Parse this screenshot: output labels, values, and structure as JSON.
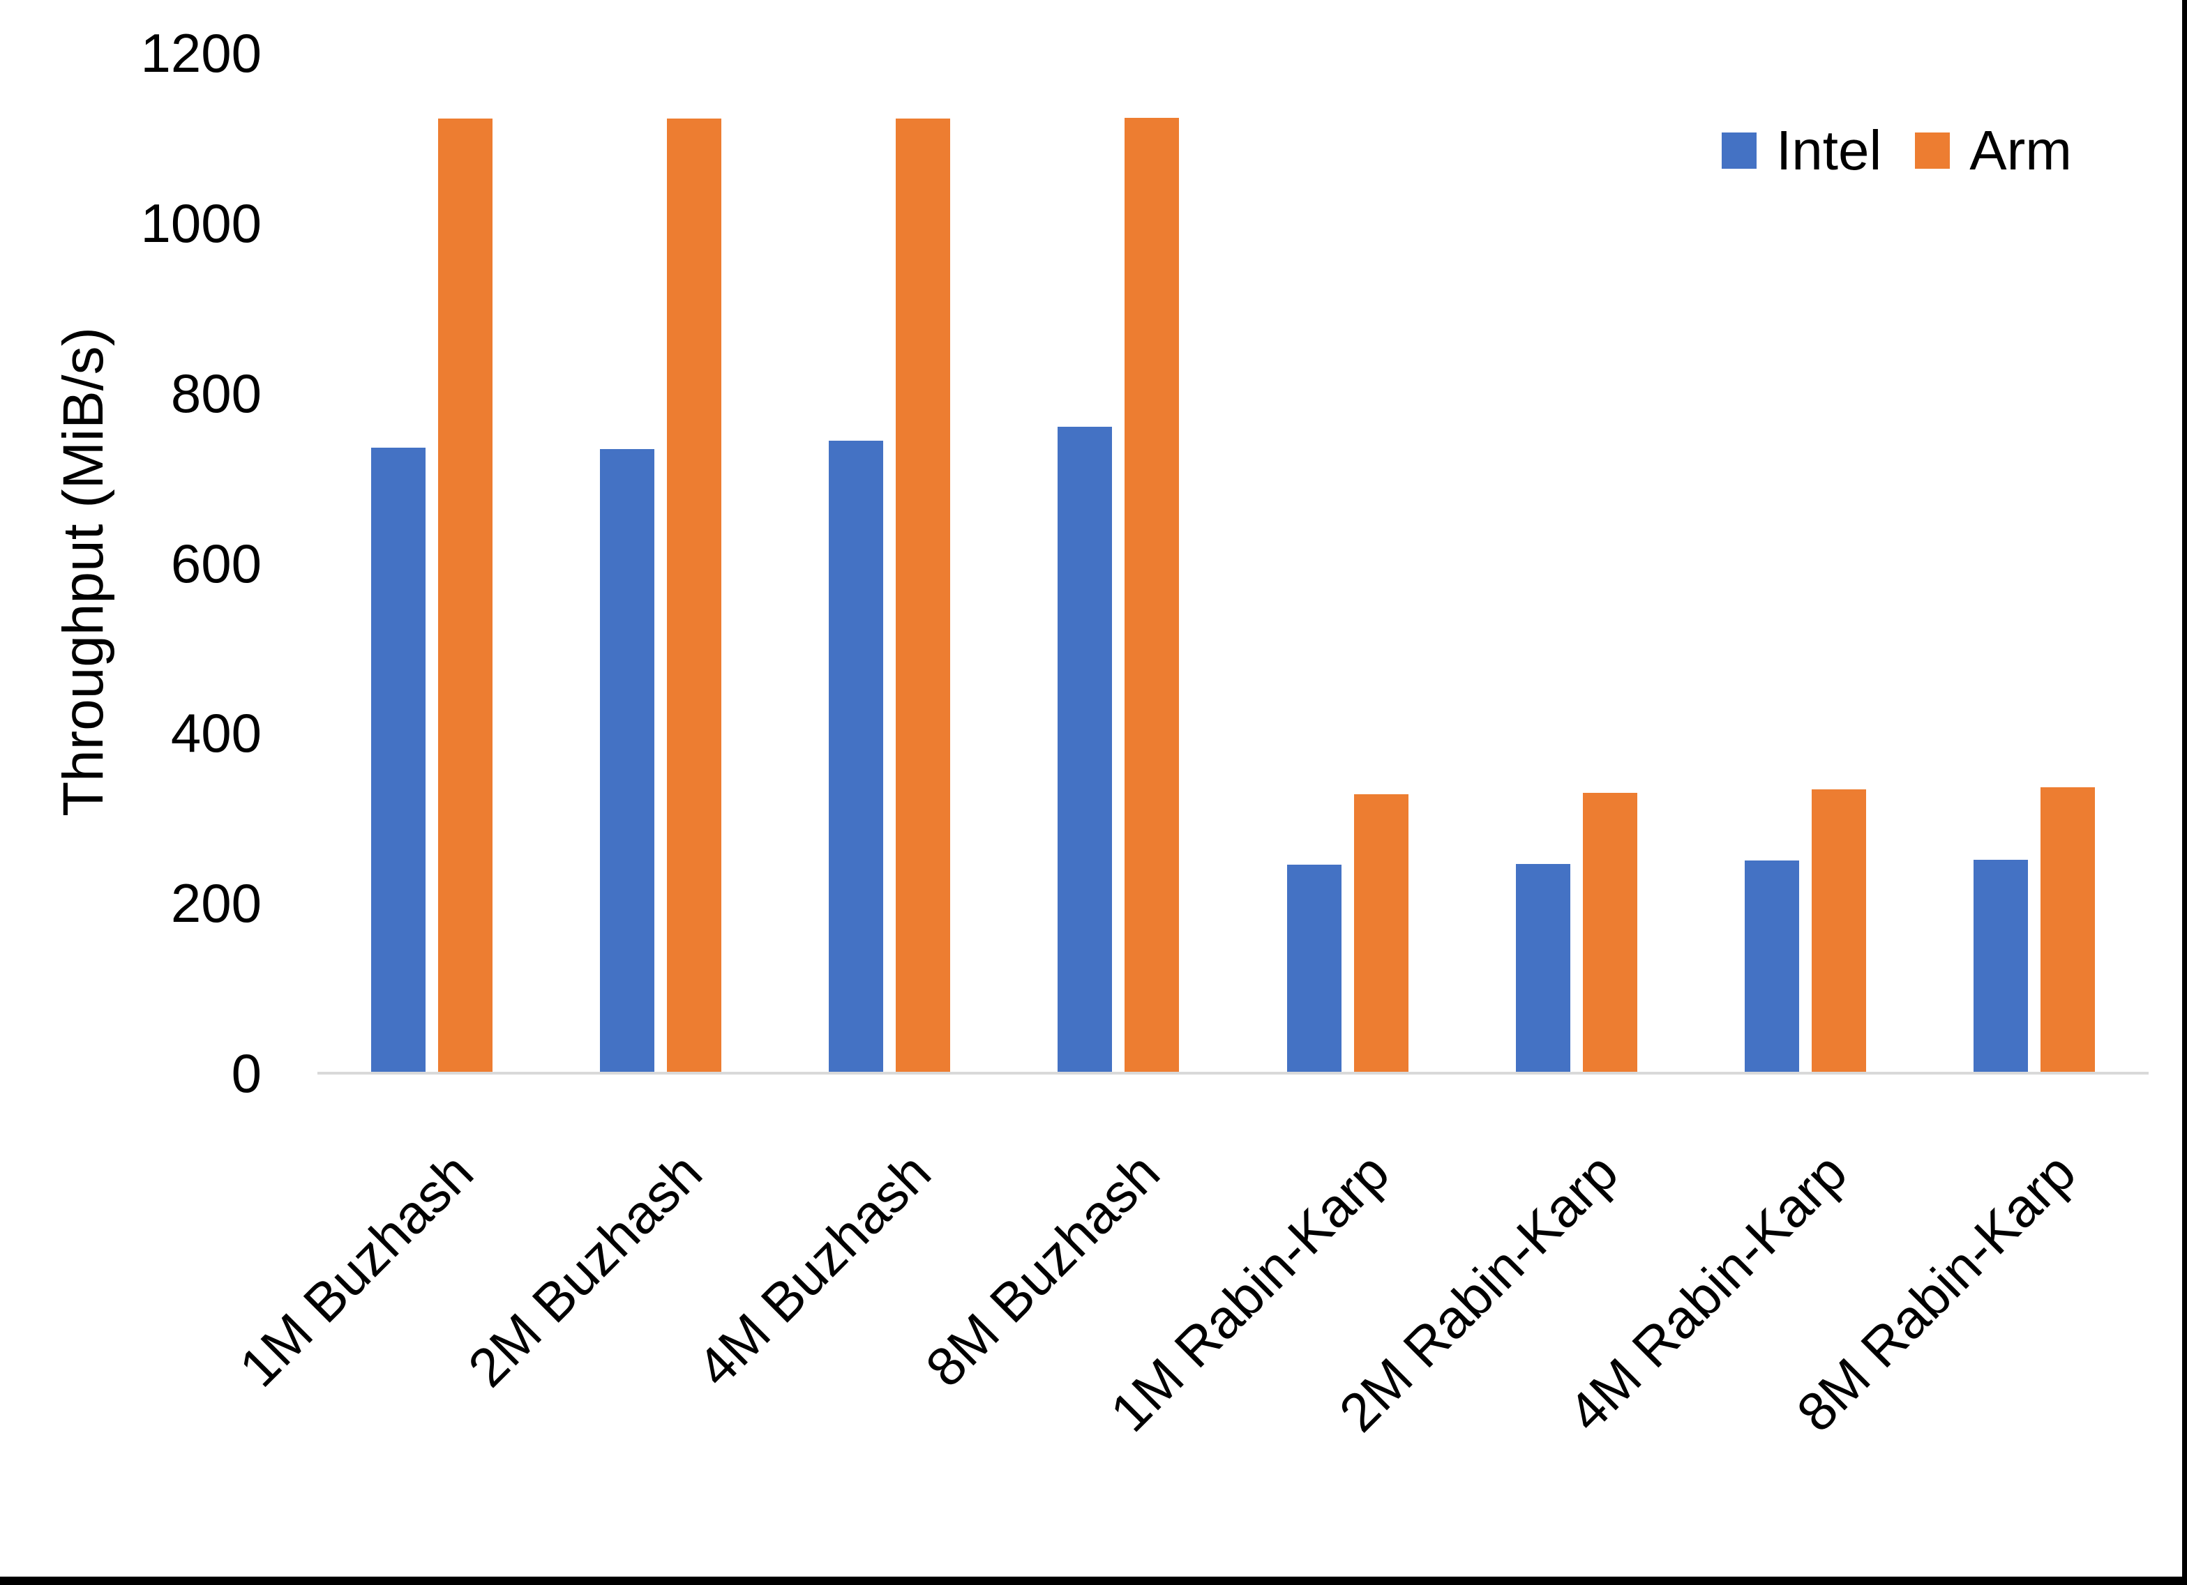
{
  "chart_data": {
    "type": "bar",
    "title": "",
    "xlabel": "",
    "ylabel": "Throughput (MiB/s)",
    "categories": [
      "1M Buzhash",
      "2M Buzhash",
      "4M Buzhash",
      "8M Buzhash",
      "1M Rabin-Karp",
      "2M Rabin-Karp",
      "4M Rabin-Karp",
      "8M Rabin-Karp"
    ],
    "series": [
      {
        "name": "Intel",
        "color": "#4472C4",
        "values": [
          736,
          734,
          744,
          760,
          245,
          246,
          250,
          251
        ]
      },
      {
        "name": "Arm",
        "color": "#ED7D31",
        "values": [
          1123,
          1123,
          1123,
          1124,
          328,
          330,
          334,
          336
        ]
      }
    ],
    "ylim": [
      0,
      1200
    ],
    "yticks": [
      0,
      200,
      400,
      600,
      800,
      1000,
      1200
    ],
    "grid": false,
    "legend_position": "top-right"
  },
  "axis": {
    "line_color": "#D9D9D9",
    "text_color": "#000000"
  },
  "frame": {
    "border_color": "#000000"
  }
}
